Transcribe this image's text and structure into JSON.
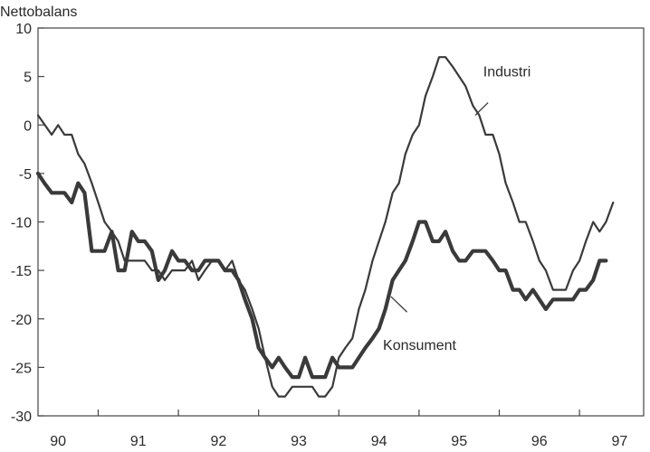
{
  "chart_data": {
    "type": "line",
    "title": "",
    "ylabel": "Nettobalans",
    "xlabel": "",
    "ylim": [
      -30,
      10
    ],
    "xlim": [
      89.75,
      97.3
    ],
    "y_ticks": [
      10,
      5,
      0,
      -5,
      -10,
      -15,
      -20,
      -25,
      -30
    ],
    "x_tick_labels": [
      "90",
      "91",
      "92",
      "93",
      "94",
      "95",
      "96",
      "97"
    ],
    "x_year_boundaries": [
      90.5,
      91.5,
      92.5,
      93.5,
      94.5,
      95.5,
      96.5
    ],
    "grid": false,
    "legend": "inline labels on lines",
    "colors": {
      "line": "#3a3a3a",
      "axis": "#444444",
      "text": "#2a2a2a"
    },
    "series": [
      {
        "name": "Industri",
        "stroke": "thin",
        "points": [
          [
            89.75,
            1
          ],
          [
            89.92,
            -1
          ],
          [
            90.0,
            0
          ],
          [
            90.08,
            -1
          ],
          [
            90.17,
            -1
          ],
          [
            90.25,
            -3
          ],
          [
            90.33,
            -4
          ],
          [
            90.42,
            -6
          ],
          [
            90.5,
            -8
          ],
          [
            90.58,
            -10
          ],
          [
            90.67,
            -11
          ],
          [
            90.75,
            -12
          ],
          [
            90.83,
            -14
          ],
          [
            90.92,
            -14
          ],
          [
            91.0,
            -14
          ],
          [
            91.08,
            -14
          ],
          [
            91.17,
            -15
          ],
          [
            91.25,
            -15
          ],
          [
            91.33,
            -16
          ],
          [
            91.42,
            -15
          ],
          [
            91.5,
            -15
          ],
          [
            91.58,
            -15
          ],
          [
            91.67,
            -14
          ],
          [
            91.75,
            -16
          ],
          [
            91.83,
            -15
          ],
          [
            91.92,
            -14
          ],
          [
            92.0,
            -14
          ],
          [
            92.08,
            -15
          ],
          [
            92.17,
            -14
          ],
          [
            92.25,
            -16
          ],
          [
            92.33,
            -17
          ],
          [
            92.42,
            -19
          ],
          [
            92.5,
            -21
          ],
          [
            92.58,
            -24
          ],
          [
            92.67,
            -27
          ],
          [
            92.75,
            -28
          ],
          [
            92.83,
            -28
          ],
          [
            92.92,
            -27
          ],
          [
            93.0,
            -27
          ],
          [
            93.08,
            -27
          ],
          [
            93.17,
            -27
          ],
          [
            93.25,
            -28
          ],
          [
            93.33,
            -28
          ],
          [
            93.42,
            -27
          ],
          [
            93.5,
            -24
          ],
          [
            93.58,
            -23
          ],
          [
            93.67,
            -22
          ],
          [
            93.75,
            -19
          ],
          [
            93.83,
            -17
          ],
          [
            93.92,
            -14
          ],
          [
            94.0,
            -12
          ],
          [
            94.08,
            -10
          ],
          [
            94.17,
            -7
          ],
          [
            94.25,
            -6
          ],
          [
            94.33,
            -3
          ],
          [
            94.42,
            -1
          ],
          [
            94.5,
            0
          ],
          [
            94.58,
            3
          ],
          [
            94.67,
            5
          ],
          [
            94.75,
            7
          ],
          [
            94.83,
            7
          ],
          [
            94.92,
            6
          ],
          [
            95.0,
            5
          ],
          [
            95.08,
            4
          ],
          [
            95.17,
            2
          ],
          [
            95.25,
            1
          ],
          [
            95.33,
            -1
          ],
          [
            95.42,
            -1
          ],
          [
            95.5,
            -3
          ],
          [
            95.58,
            -6
          ],
          [
            95.67,
            -8
          ],
          [
            95.75,
            -10
          ],
          [
            95.83,
            -10
          ],
          [
            95.92,
            -12
          ],
          [
            96.0,
            -14
          ],
          [
            96.08,
            -15
          ],
          [
            96.17,
            -17
          ],
          [
            96.25,
            -17
          ],
          [
            96.33,
            -17
          ],
          [
            96.42,
            -15
          ],
          [
            96.5,
            -14
          ],
          [
            96.58,
            -12
          ],
          [
            96.67,
            -10
          ],
          [
            96.75,
            -11
          ],
          [
            96.83,
            -10
          ],
          [
            96.92,
            -8
          ]
        ]
      },
      {
        "name": "Konsument",
        "stroke": "thick",
        "points": [
          [
            89.75,
            -5
          ],
          [
            89.83,
            -6
          ],
          [
            89.92,
            -7
          ],
          [
            90.0,
            -7
          ],
          [
            90.08,
            -7
          ],
          [
            90.17,
            -8
          ],
          [
            90.25,
            -6
          ],
          [
            90.33,
            -7
          ],
          [
            90.42,
            -13
          ],
          [
            90.5,
            -13
          ],
          [
            90.58,
            -13
          ],
          [
            90.67,
            -11
          ],
          [
            90.75,
            -15
          ],
          [
            90.83,
            -15
          ],
          [
            90.92,
            -11
          ],
          [
            91.0,
            -12
          ],
          [
            91.08,
            -12
          ],
          [
            91.17,
            -13
          ],
          [
            91.25,
            -16
          ],
          [
            91.33,
            -15
          ],
          [
            91.42,
            -13
          ],
          [
            91.5,
            -14
          ],
          [
            91.58,
            -14
          ],
          [
            91.67,
            -15
          ],
          [
            91.75,
            -15
          ],
          [
            91.83,
            -14
          ],
          [
            91.92,
            -14
          ],
          [
            92.0,
            -14
          ],
          [
            92.08,
            -15
          ],
          [
            92.17,
            -15
          ],
          [
            92.25,
            -16
          ],
          [
            92.33,
            -18
          ],
          [
            92.42,
            -20
          ],
          [
            92.5,
            -23
          ],
          [
            92.58,
            -24
          ],
          [
            92.67,
            -25
          ],
          [
            92.75,
            -24
          ],
          [
            92.83,
            -25
          ],
          [
            92.92,
            -26
          ],
          [
            93.0,
            -26
          ],
          [
            93.08,
            -24
          ],
          [
            93.17,
            -26
          ],
          [
            93.25,
            -26
          ],
          [
            93.33,
            -26
          ],
          [
            93.42,
            -24
          ],
          [
            93.5,
            -25
          ],
          [
            93.58,
            -25
          ],
          [
            93.67,
            -25
          ],
          [
            93.75,
            -24
          ],
          [
            93.83,
            -23
          ],
          [
            93.92,
            -22
          ],
          [
            94.0,
            -21
          ],
          [
            94.08,
            -19
          ],
          [
            94.17,
            -16
          ],
          [
            94.25,
            -15
          ],
          [
            94.33,
            -14
          ],
          [
            94.42,
            -12
          ],
          [
            94.5,
            -10
          ],
          [
            94.58,
            -10
          ],
          [
            94.67,
            -12
          ],
          [
            94.75,
            -12
          ],
          [
            94.83,
            -11
          ],
          [
            94.92,
            -13
          ],
          [
            95.0,
            -14
          ],
          [
            95.08,
            -14
          ],
          [
            95.17,
            -13
          ],
          [
            95.25,
            -13
          ],
          [
            95.33,
            -13
          ],
          [
            95.42,
            -14
          ],
          [
            95.5,
            -15
          ],
          [
            95.58,
            -15
          ],
          [
            95.67,
            -17
          ],
          [
            95.75,
            -17
          ],
          [
            95.83,
            -18
          ],
          [
            95.92,
            -17
          ],
          [
            96.0,
            -18
          ],
          [
            96.08,
            -19
          ],
          [
            96.17,
            -18
          ],
          [
            96.25,
            -18
          ],
          [
            96.33,
            -18
          ],
          [
            96.42,
            -18
          ],
          [
            96.5,
            -17
          ],
          [
            96.58,
            -17
          ],
          [
            96.67,
            -16
          ],
          [
            96.75,
            -14
          ],
          [
            96.83,
            -14
          ]
        ]
      }
    ],
    "annotations": [
      {
        "text": "Industri",
        "series": "Industri"
      },
      {
        "text": "Konsument",
        "series": "Konsument"
      }
    ]
  }
}
